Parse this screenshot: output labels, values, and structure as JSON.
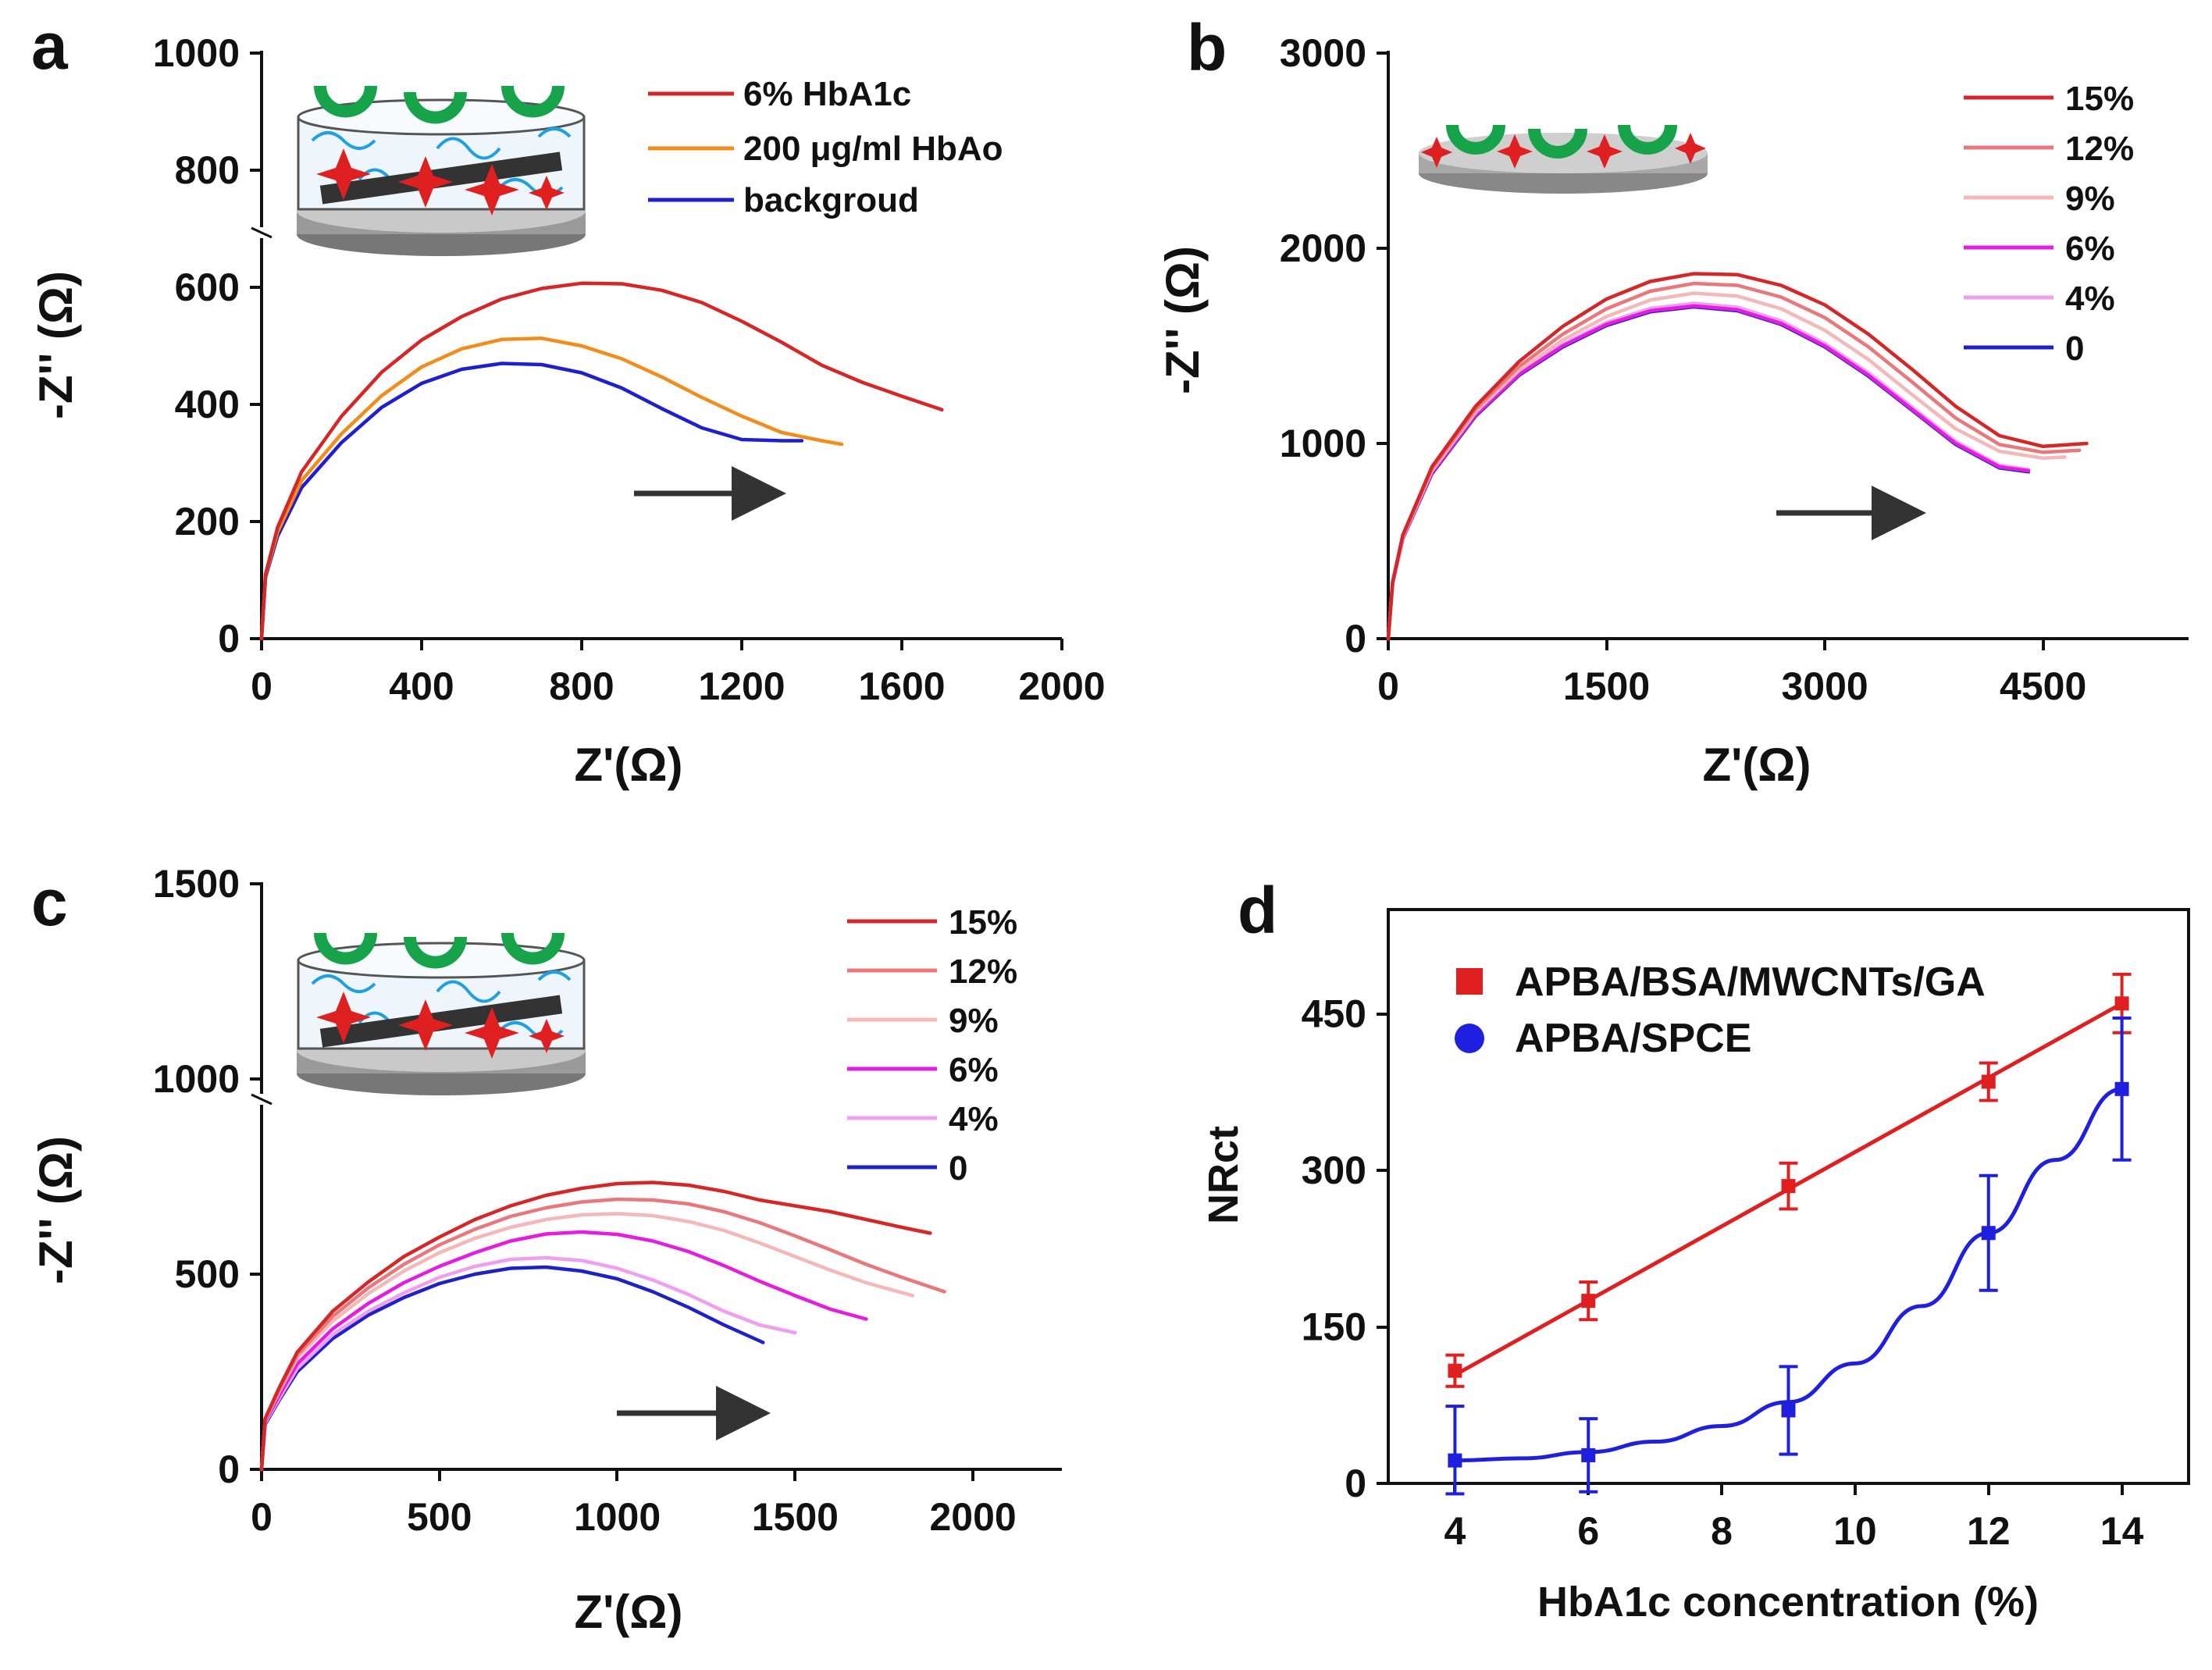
{
  "colors": {
    "red": "#d62728",
    "orange": "#f28c1a",
    "blue": "#1f1fd0",
    "pink": "#e8787c",
    "lightpink": "#f4b8b8",
    "magenta": "#e51de0",
    "violet": "#ef9ff0",
    "navy": "#2020c8",
    "green": "#16a34a",
    "arrow": "#333333"
  },
  "chart_data": [
    {
      "panel": "a",
      "type": "line",
      "xlabel": "Z'(Ω)",
      "ylabel": "-Z'' (Ω)",
      "xlim": [
        0,
        2000
      ],
      "ylim": [
        0,
        1000
      ],
      "xticks": [
        0,
        400,
        800,
        1200,
        1600,
        2000
      ],
      "yticks": [
        0,
        200,
        400,
        600,
        800,
        1000
      ],
      "legend_position": "top-right",
      "inset": "MWCNTs/BSA composite electrode with boronic acid receptors",
      "series": [
        {
          "name": "6% HbA1c",
          "color_key": "red",
          "x": [
            0,
            10,
            40,
            100,
            200,
            300,
            400,
            500,
            600,
            700,
            800,
            900,
            1000,
            1100,
            1200,
            1300,
            1400,
            1500,
            1600,
            1700
          ],
          "y": [
            0,
            110,
            190,
            285,
            380,
            455,
            510,
            550,
            580,
            598,
            607,
            606,
            595,
            574,
            542,
            506,
            467,
            438,
            414,
            391
          ]
        },
        {
          "name": "200 μg/ml HbAo",
          "color_key": "orange",
          "x": [
            0,
            10,
            40,
            100,
            200,
            300,
            400,
            500,
            600,
            700,
            800,
            900,
            1000,
            1100,
            1200,
            1300,
            1400,
            1450
          ],
          "y": [
            0,
            108,
            182,
            270,
            350,
            415,
            464,
            495,
            511,
            513,
            500,
            478,
            447,
            412,
            380,
            352,
            338,
            332
          ]
        },
        {
          "name": "backgroud",
          "color_key": "blue",
          "x": [
            0,
            10,
            40,
            100,
            200,
            300,
            400,
            500,
            600,
            700,
            800,
            900,
            1000,
            1100,
            1200,
            1300,
            1350
          ],
          "y": [
            0,
            105,
            175,
            258,
            335,
            395,
            436,
            460,
            470,
            468,
            454,
            428,
            393,
            360,
            340,
            338,
            338
          ]
        }
      ]
    },
    {
      "panel": "b",
      "type": "line",
      "xlabel": "Z'(Ω)",
      "ylabel": "-Z'' (Ω)",
      "xlim": [
        0,
        5500
      ],
      "ylim": [
        0,
        3000
      ],
      "xticks": [
        0,
        1500,
        3000,
        4500
      ],
      "yticks": [
        0,
        1000,
        2000,
        3000
      ],
      "legend_position": "top-right",
      "inset": "bare electrode with boronic acid receptors",
      "series": [
        {
          "name": "15%",
          "color_key": "red",
          "x": [
            0,
            30,
            100,
            300,
            600,
            900,
            1200,
            1500,
            1800,
            2100,
            2400,
            2700,
            3000,
            3300,
            3600,
            3900,
            4200,
            4500,
            4800
          ],
          "y": [
            0,
            290,
            530,
            880,
            1190,
            1420,
            1600,
            1740,
            1830,
            1870,
            1865,
            1810,
            1710,
            1560,
            1380,
            1190,
            1040,
            985,
            1000
          ]
        },
        {
          "name": "12%",
          "color_key": "pink",
          "x": [
            0,
            30,
            100,
            300,
            600,
            900,
            1200,
            1500,
            1800,
            2100,
            2400,
            2700,
            3000,
            3300,
            3600,
            3900,
            4200,
            4500,
            4750
          ],
          "y": [
            0,
            288,
            525,
            870,
            1175,
            1395,
            1560,
            1690,
            1780,
            1820,
            1810,
            1750,
            1645,
            1495,
            1315,
            1130,
            995,
            955,
            965
          ]
        },
        {
          "name": "9%",
          "color_key": "lightpink",
          "x": [
            0,
            30,
            100,
            300,
            600,
            900,
            1200,
            1500,
            1800,
            2100,
            2400,
            2700,
            3000,
            3300,
            3600,
            3900,
            4200,
            4500,
            4650
          ],
          "y": [
            0,
            286,
            520,
            860,
            1160,
            1375,
            1530,
            1650,
            1735,
            1770,
            1755,
            1690,
            1580,
            1430,
            1250,
            1075,
            960,
            925,
            930
          ]
        },
        {
          "name": "6%",
          "color_key": "magenta",
          "x": [
            0,
            30,
            100,
            300,
            600,
            900,
            1200,
            1500,
            1800,
            2100,
            2400,
            2700,
            3000,
            3300,
            3600,
            3900,
            4200,
            4400
          ],
          "y": [
            0,
            284,
            515,
            850,
            1145,
            1355,
            1500,
            1610,
            1680,
            1705,
            1685,
            1615,
            1500,
            1350,
            1175,
            1000,
            880,
            860
          ]
        },
        {
          "name": "4%",
          "color_key": "violet",
          "x": [
            0,
            30,
            100,
            300,
            600,
            900,
            1200,
            1500,
            1800,
            2100,
            2400,
            2700,
            3000,
            3300,
            3600,
            3900,
            4200,
            4400
          ],
          "y": [
            0,
            284,
            515,
            852,
            1148,
            1360,
            1508,
            1620,
            1692,
            1718,
            1698,
            1628,
            1512,
            1362,
            1186,
            1010,
            888,
            866
          ]
        },
        {
          "name": "0",
          "color_key": "navy",
          "x": [
            0,
            30,
            100,
            300,
            600,
            900,
            1200,
            1500,
            1800,
            2100,
            2400,
            2700,
            3000,
            3300,
            3600,
            3900,
            4200,
            4400
          ],
          "y": [
            0,
            282,
            512,
            845,
            1140,
            1350,
            1495,
            1605,
            1675,
            1700,
            1680,
            1610,
            1495,
            1345,
            1170,
            995,
            875,
            855
          ]
        }
      ]
    },
    {
      "panel": "c",
      "type": "line",
      "xlabel": "Z'(Ω)",
      "ylabel": "-Z'' (Ω)",
      "xlim": [
        0,
        2250
      ],
      "ylim": [
        0,
        1500
      ],
      "xticks": [
        0,
        500,
        1000,
        1500,
        2000
      ],
      "yticks": [
        0,
        500,
        1000,
        1500
      ],
      "legend_position": "top-right",
      "inset": "MWCNTs/BSA composite electrode with boronic acid receptors",
      "series": [
        {
          "name": "15%",
          "color_key": "red",
          "x": [
            0,
            10,
            50,
            100,
            200,
            300,
            400,
            500,
            600,
            700,
            800,
            900,
            1000,
            1100,
            1200,
            1300,
            1400,
            1500,
            1600,
            1700,
            1800,
            1880
          ],
          "y": [
            0,
            130,
            210,
            300,
            405,
            480,
            545,
            595,
            640,
            675,
            702,
            720,
            732,
            735,
            728,
            712,
            690,
            675,
            660,
            640,
            620,
            605
          ]
        },
        {
          "name": "12%",
          "color_key": "pink",
          "x": [
            0,
            10,
            50,
            100,
            200,
            300,
            400,
            500,
            600,
            700,
            800,
            900,
            1000,
            1100,
            1200,
            1300,
            1400,
            1500,
            1600,
            1700,
            1800,
            1920
          ],
          "y": [
            0,
            128,
            205,
            292,
            392,
            465,
            525,
            575,
            615,
            648,
            670,
            685,
            692,
            690,
            680,
            660,
            632,
            598,
            562,
            525,
            492,
            455
          ]
        },
        {
          "name": "9%",
          "color_key": "lightpink",
          "x": [
            0,
            10,
            50,
            100,
            200,
            300,
            400,
            500,
            600,
            700,
            800,
            900,
            1000,
            1100,
            1200,
            1300,
            1400,
            1500,
            1600,
            1700,
            1830
          ],
          "y": [
            0,
            126,
            200,
            285,
            380,
            450,
            508,
            555,
            592,
            620,
            640,
            652,
            655,
            650,
            635,
            612,
            580,
            545,
            510,
            478,
            445
          ]
        },
        {
          "name": "6%",
          "color_key": "magenta",
          "x": [
            0,
            10,
            50,
            100,
            200,
            300,
            400,
            500,
            600,
            700,
            800,
            900,
            1000,
            1100,
            1200,
            1300,
            1400,
            1500,
            1600,
            1700
          ],
          "y": [
            0,
            122,
            190,
            270,
            360,
            425,
            478,
            520,
            555,
            585,
            603,
            608,
            602,
            585,
            558,
            522,
            482,
            445,
            410,
            385
          ]
        },
        {
          "name": "4%",
          "color_key": "violet",
          "x": [
            0,
            10,
            50,
            100,
            200,
            300,
            400,
            500,
            600,
            700,
            800,
            900,
            1000,
            1100,
            1200,
            1300,
            1400,
            1500
          ],
          "y": [
            0,
            118,
            182,
            258,
            345,
            405,
            452,
            492,
            520,
            538,
            542,
            535,
            515,
            485,
            448,
            405,
            370,
            350
          ]
        },
        {
          "name": "0",
          "color_key": "navy",
          "x": [
            0,
            10,
            50,
            100,
            200,
            300,
            400,
            500,
            600,
            700,
            800,
            900,
            1000,
            1100,
            1200,
            1300,
            1410
          ],
          "y": [
            0,
            115,
            178,
            250,
            335,
            395,
            440,
            476,
            500,
            515,
            518,
            508,
            488,
            455,
            415,
            370,
            325
          ]
        }
      ]
    },
    {
      "panel": "d",
      "type": "scatter",
      "xlabel": "HbA1c concentration (%)",
      "ylabel": "NRct",
      "xlim": [
        3,
        15
      ],
      "ylim": [
        0,
        550
      ],
      "xticks": [
        4,
        6,
        8,
        10,
        12,
        14
      ],
      "yticks": [
        0,
        150,
        300,
        450
      ],
      "legend_position": "top-left",
      "series": [
        {
          "name": "APBA/BSA/MWCNTs/GA",
          "color_key": "red",
          "marker": "square",
          "fit": "linear",
          "x": [
            4,
            6,
            9,
            12,
            14
          ],
          "y": [
            108,
            175,
            285,
            385,
            460
          ],
          "error": [
            15,
            18,
            22,
            18,
            28
          ],
          "fit_x": [
            4,
            14
          ],
          "fit_y": [
            104,
            460
          ]
        },
        {
          "name": "APBA/SPCE",
          "color_key": "blue",
          "marker": "circle",
          "fit": "curve",
          "x": [
            4,
            6,
            9,
            12,
            14
          ],
          "y": [
            22,
            27,
            70,
            240,
            378
          ],
          "error": [
            52,
            35,
            42,
            55,
            68
          ],
          "fit_x": [
            4,
            5,
            6,
            7,
            8,
            9,
            10,
            11,
            12,
            13,
            14
          ],
          "fit_y": [
            22,
            24,
            30,
            40,
            55,
            78,
            115,
            170,
            240,
            310,
            378
          ]
        }
      ]
    }
  ]
}
